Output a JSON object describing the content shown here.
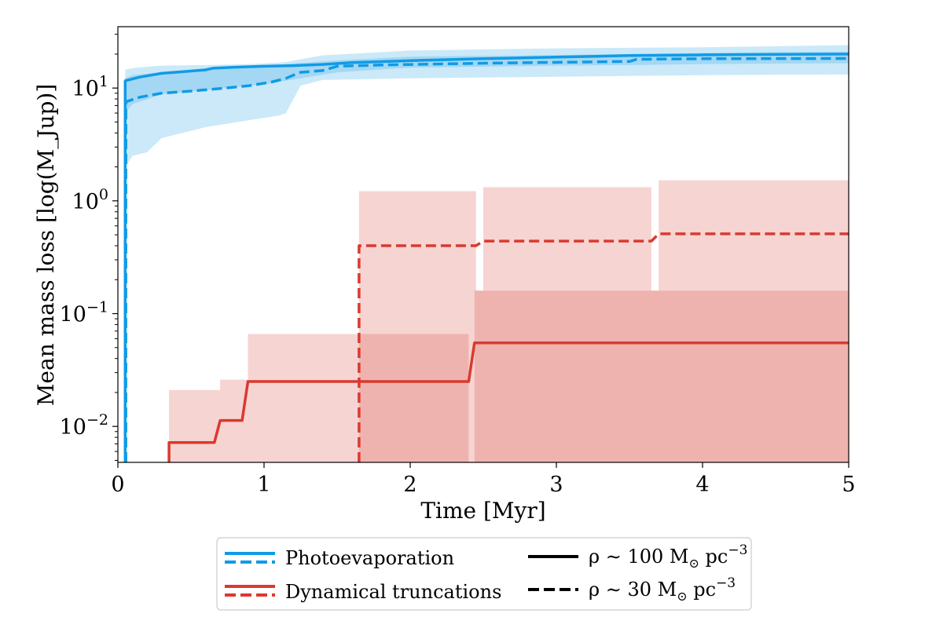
{
  "chart_data": {
    "type": "line",
    "xlabel": "Time [Myr]",
    "ylabel": "Mean mass loss [log(M_Jup)]",
    "xlim": [
      0,
      5
    ],
    "ylim": [
      0.0048,
      35
    ],
    "yscale": "log",
    "grid": false,
    "legend_position": "bottom-center, below plot",
    "x_ticks": [
      0,
      1,
      2,
      3,
      4,
      5
    ],
    "y_ticks": [
      {
        "value": 0.01,
        "base": "10",
        "exp": "−2"
      },
      {
        "value": 0.1,
        "base": "10",
        "exp": "−1"
      },
      {
        "value": 1,
        "base": "10",
        "exp": "0"
      },
      {
        "value": 10,
        "base": "10",
        "exp": "1"
      }
    ],
    "colors": {
      "photoevaporation": "#0f9be6",
      "photoevaporation_band": "#cbe9f8",
      "photoevaporation_band_inner": "#a4d7f3",
      "dynamical": "#d93a2f",
      "dynamical_band": "#f6d4d2",
      "dynamical_band_inner": "#efb3af"
    },
    "series": [
      {
        "name": "Photoevaporation",
        "density": "ρ ∼ 100 M⊙ pc⁻³",
        "style": "solid",
        "color": "#0f9be6",
        "x": [
          0.05,
          0.05,
          0.06,
          0.15,
          0.3,
          0.45,
          0.6,
          0.65,
          0.8,
          1.0,
          1.2,
          1.4,
          1.6,
          2.0,
          2.5,
          3.0,
          3.5,
          4.0,
          4.5,
          5.0
        ],
        "y": [
          0.0048,
          11.6,
          11.7,
          12.5,
          13.5,
          14.0,
          14.5,
          15.0,
          15.3,
          15.6,
          15.8,
          16.2,
          16.8,
          17.5,
          18.2,
          18.8,
          19.4,
          19.7,
          19.9,
          20.0
        ]
      },
      {
        "name": "Photoevaporation",
        "density": "ρ ∼ 30 M⊙ pc⁻³",
        "style": "dashed",
        "color": "#0f9be6",
        "x": [
          0.055,
          0.055,
          0.06,
          0.15,
          0.3,
          0.5,
          0.7,
          0.9,
          1.05,
          1.15,
          1.2,
          1.25,
          1.4,
          1.5,
          1.8,
          2.5,
          3.0,
          3.5,
          3.55,
          4.0,
          5.0
        ],
        "y": [
          0.0048,
          7.5,
          7.6,
          8.3,
          9.0,
          9.4,
          9.9,
          10.5,
          11.3,
          12.2,
          13.0,
          13.8,
          14.3,
          15.6,
          16.0,
          16.6,
          16.9,
          17.2,
          18.0,
          18.2,
          18.3
        ]
      },
      {
        "name": "Dynamical truncations",
        "density": "ρ ∼ 100 M⊙ pc⁻³",
        "style": "solid",
        "color": "#d93a2f",
        "x": [
          0.35,
          0.35,
          0.66,
          0.7,
          0.85,
          0.89,
          2.4,
          2.44,
          5.0
        ],
        "y": [
          0.0048,
          0.0072,
          0.0072,
          0.0113,
          0.0113,
          0.025,
          0.025,
          0.055,
          0.055
        ]
      },
      {
        "name": "Dynamical truncations",
        "density": "ρ ∼ 30 M⊙ pc⁻³",
        "style": "dashed",
        "color": "#d93a2f",
        "x": [
          1.65,
          1.65,
          2.45,
          2.5,
          3.65,
          3.7,
          5.0
        ],
        "y": [
          0.0048,
          0.4,
          0.4,
          0.44,
          0.44,
          0.51,
          0.51
        ]
      }
    ],
    "bands": [
      {
        "series": "Photoevaporation, ρ ∼ 30 M⊙ pc⁻³",
        "color": "#cbe9f8",
        "x": [
          0.05,
          0.1,
          0.2,
          0.3,
          0.6,
          0.9,
          1.1,
          1.15,
          1.25,
          1.4,
          2.0,
          3.0,
          4.0,
          5.0
        ],
        "lower": [
          2.0,
          2.5,
          2.7,
          3.6,
          4.5,
          5.2,
          5.7,
          6.0,
          10.5,
          11.8,
          12.2,
          12.6,
          13.0,
          13.2
        ],
        "upper": [
          14.5,
          15.0,
          15.5,
          15.8,
          16.0,
          16.3,
          16.8,
          17.0,
          18.0,
          19.5,
          21.5,
          22.5,
          23.0,
          24.0
        ]
      },
      {
        "series": "Photoevaporation, ρ ∼ 100 M⊙ pc⁻³",
        "color": "#a4d7f3",
        "x": [
          0.05,
          0.1,
          0.3,
          0.6,
          1.0,
          1.5,
          2.0,
          3.0,
          3.5,
          4.0,
          5.0
        ],
        "lower": [
          6.0,
          7.2,
          8.8,
          9.6,
          10.8,
          13.8,
          15.2,
          15.8,
          16.0,
          16.3,
          16.6
        ],
        "upper": [
          12.2,
          13.0,
          13.8,
          14.6,
          15.8,
          17.6,
          19.0,
          19.6,
          20.0,
          20.5,
          21.0
        ]
      },
      {
        "series": "Dynamical truncations, ρ ∼ 100 M⊙ pc⁻³",
        "color": "#f6d4d2",
        "steps": [
          {
            "x0": 0.35,
            "x1": 0.66,
            "upper": 0.021
          },
          {
            "x0": 0.66,
            "x1": 0.7,
            "upper": 0.021
          },
          {
            "x0": 0.7,
            "x1": 0.85,
            "upper": 0.026
          },
          {
            "x0": 0.85,
            "x1": 0.89,
            "upper": 0.026
          },
          {
            "x0": 0.89,
            "x1": 2.4,
            "upper": 0.066
          },
          {
            "x0": 2.44,
            "x1": 5.0,
            "upper": 0.16
          }
        ]
      },
      {
        "series": "Dynamical truncations, ρ ∼ 30 M⊙ pc⁻³",
        "color": "#f6d4d2",
        "steps": [
          {
            "x0": 1.65,
            "x1": 2.45,
            "upper": 1.22
          },
          {
            "x0": 2.5,
            "x1": 3.65,
            "upper": 1.32
          },
          {
            "x0": 3.7,
            "x1": 5.0,
            "upper": 1.52
          }
        ]
      },
      {
        "series": "Dynamical truncations overlap",
        "color": "#efb3af",
        "steps": [
          {
            "x0": 1.65,
            "x1": 2.4,
            "upper": 0.066
          },
          {
            "x0": 2.44,
            "x1": 5.0,
            "upper": 0.16
          }
        ]
      }
    ],
    "legend": {
      "process_entries": [
        {
          "label": "Photoevaporation",
          "color": "#0f9be6"
        },
        {
          "label": "Dynamical truncations",
          "color": "#d93a2f"
        }
      ],
      "density_entries": [
        {
          "label_prefix": "ρ ∼ 100 M",
          "label_sub": "⊙",
          "label_mid": " pc",
          "label_sup": "−3",
          "style": "solid"
        },
        {
          "label_prefix": "ρ ∼ 30 M",
          "label_sub": "⊙",
          "label_mid": " pc",
          "label_sup": "−3",
          "style": "dashed"
        }
      ]
    }
  }
}
